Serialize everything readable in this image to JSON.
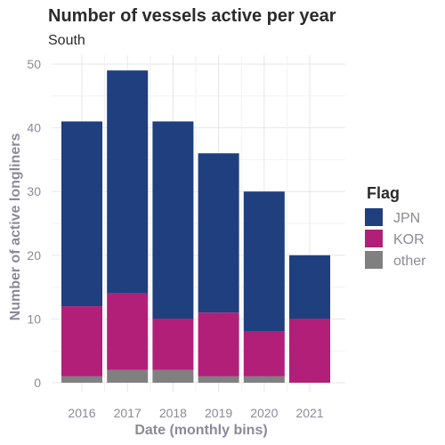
{
  "chart_data": {
    "type": "bar",
    "stacked": true,
    "title": "Number of vessels active per year",
    "subtitle": "South",
    "xlabel": "Date (monthly bins)",
    "ylabel": "Number of active longliners",
    "ylim": [
      0,
      50
    ],
    "yticks": [
      0,
      10,
      20,
      30,
      40,
      50
    ],
    "grid": true,
    "categories": [
      "2016",
      "2017",
      "2018",
      "2019",
      "2020",
      "2021"
    ],
    "series": [
      {
        "name": "other",
        "color": "#808080",
        "values": [
          1,
          2,
          2,
          1,
          1,
          0
        ]
      },
      {
        "name": "KOR",
        "color": "#b11f78",
        "values": [
          11,
          12,
          8,
          10,
          7,
          10
        ]
      },
      {
        "name": "JPN",
        "color": "#1f3f7f",
        "values": [
          29,
          35,
          31,
          25,
          22,
          10
        ]
      }
    ],
    "legend": {
      "title": "Flag",
      "position": "right",
      "order": [
        "JPN",
        "KOR",
        "other"
      ]
    }
  }
}
